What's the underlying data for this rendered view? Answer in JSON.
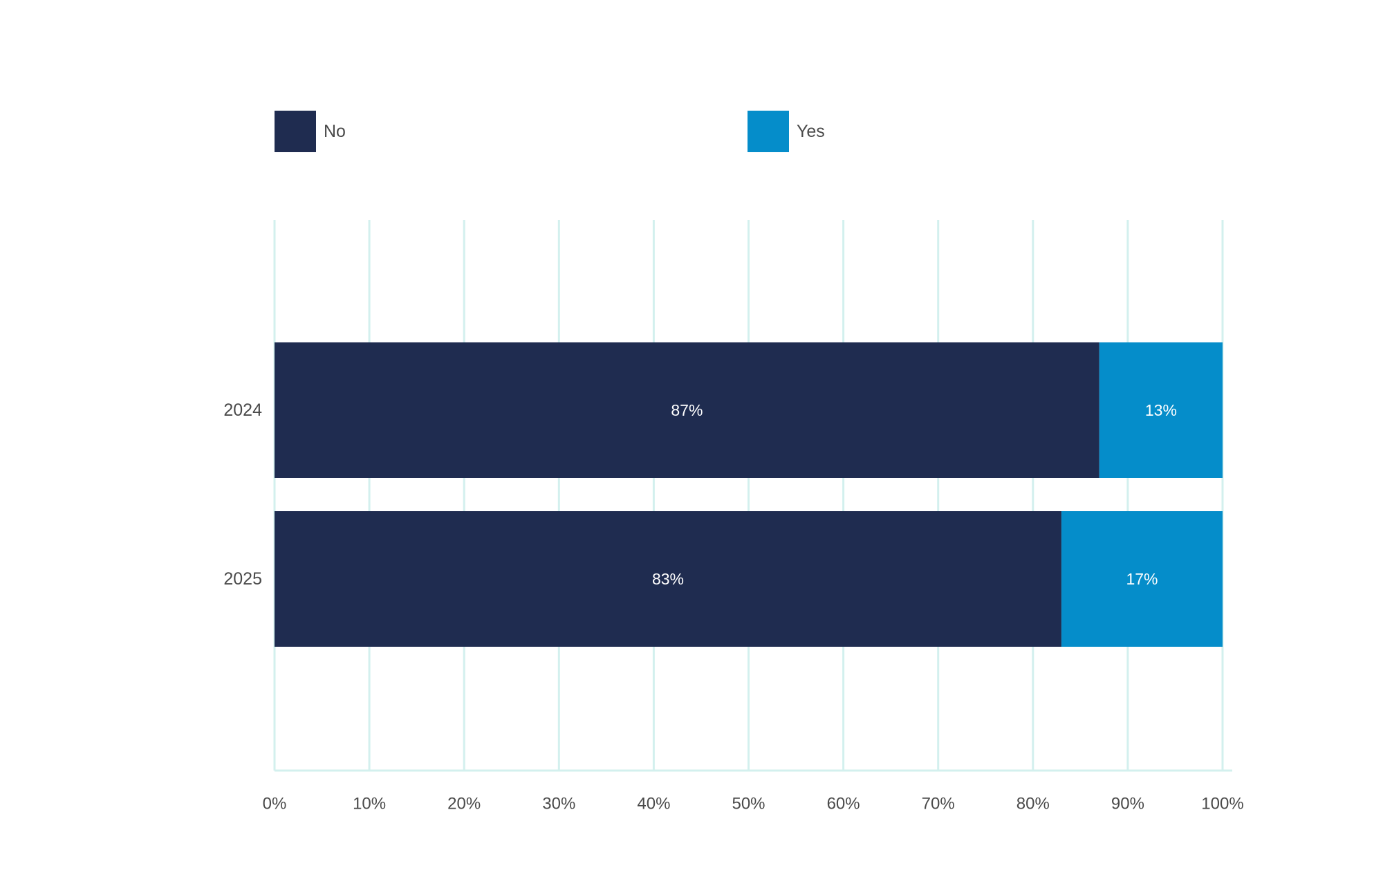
{
  "chart_data": {
    "type": "bar",
    "orientation": "horizontal",
    "stacked": true,
    "categories": [
      "2024",
      "2025"
    ],
    "series": [
      {
        "name": "No",
        "values": [
          87,
          83
        ],
        "labels": [
          "87%",
          "83%"
        ],
        "color": "#1f2c50"
      },
      {
        "name": "Yes",
        "values": [
          13,
          17
        ],
        "labels": [
          "13%",
          "17%"
        ],
        "color": "#058dca"
      }
    ],
    "xlim": [
      0,
      100
    ],
    "xticks": [
      0,
      10,
      20,
      30,
      40,
      50,
      60,
      70,
      80,
      90,
      100
    ],
    "xtick_labels": [
      "0%",
      "10%",
      "20%",
      "30%",
      "40%",
      "50%",
      "60%",
      "70%",
      "80%",
      "90%",
      "100%"
    ],
    "grid": true,
    "legend_position": "top",
    "colors": {
      "grid": "#d3f0ee",
      "axis_text": "#4a4a4a",
      "bar_label_text": "#ffffff",
      "legend_text": "#4a4a4a"
    }
  }
}
